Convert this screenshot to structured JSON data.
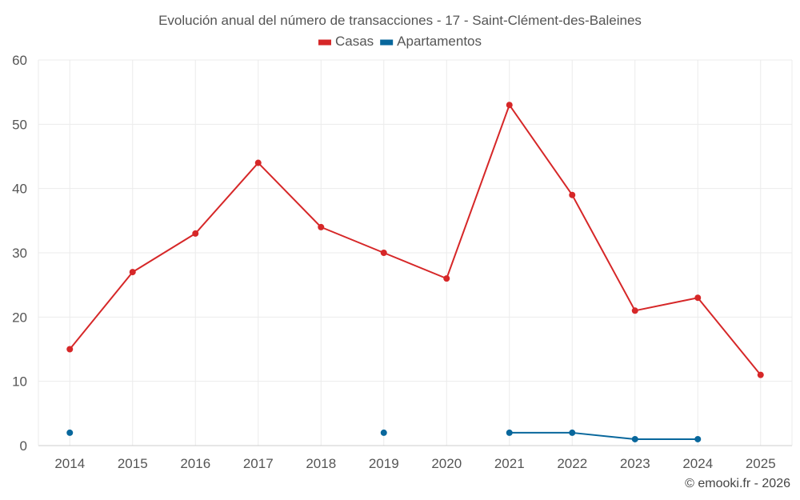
{
  "chart_data": {
    "type": "line",
    "title": "Evolución anual del número de transacciones - 17 - Saint-Clément-des-Baleines",
    "categories": [
      "2014",
      "2015",
      "2016",
      "2017",
      "2018",
      "2019",
      "2020",
      "2021",
      "2022",
      "2023",
      "2024",
      "2025"
    ],
    "series": [
      {
        "name": "Casas",
        "color": "#d62728",
        "values": [
          15,
          27,
          33,
          44,
          34,
          30,
          26,
          53,
          39,
          21,
          23,
          11
        ]
      },
      {
        "name": "Apartamentos",
        "color": "#08679c",
        "values": [
          2,
          null,
          null,
          null,
          null,
          2,
          null,
          2,
          2,
          1,
          1,
          null
        ]
      }
    ],
    "xlabel": "",
    "ylabel": "",
    "ylim": [
      0,
      60
    ],
    "yticks": [
      "0",
      "10",
      "20",
      "30",
      "40",
      "50",
      "60"
    ],
    "grid": true,
    "legend": "top-center"
  },
  "credit": "© emooki.fr - 2026"
}
